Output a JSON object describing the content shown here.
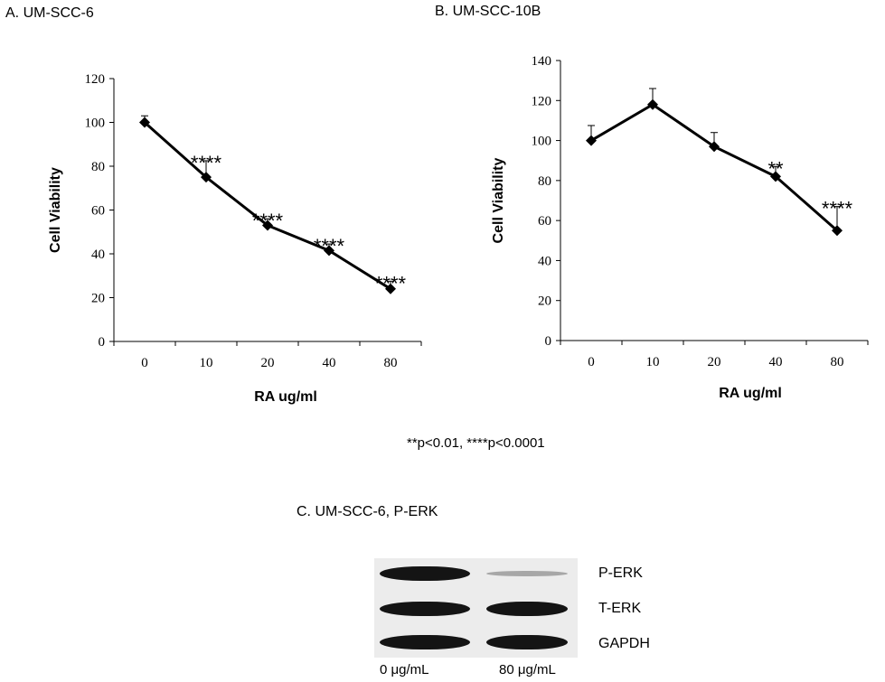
{
  "panels": {
    "a_title": "A.  UM-SCC-6",
    "b_title": "B. UM-SCC-10B",
    "c_title": "C.  UM-SCC-6, P-ERK"
  },
  "pvalue_note": "**p<0.01, ****p<0.0001",
  "chart_data": [
    {
      "type": "line",
      "title": "A.  UM-SCC-6",
      "xlabel": "RA ug/ml",
      "ylabel": "Cell Viability",
      "categories": [
        "0",
        "10",
        "20",
        "40",
        "80"
      ],
      "values": [
        100,
        75,
        53,
        41.5,
        24
      ],
      "errors": [
        3,
        7.5,
        3,
        3,
        3.5
      ],
      "significance": [
        "",
        "****",
        "****",
        "****",
        "****"
      ],
      "ylim": [
        0,
        120
      ],
      "yticks": [
        0,
        20,
        40,
        60,
        80,
        100,
        120
      ],
      "grid": false,
      "marker": "diamond"
    },
    {
      "type": "line",
      "title": "B. UM-SCC-10B",
      "xlabel": "RA ug/ml",
      "ylabel": "Cell Viability",
      "categories": [
        "0",
        "10",
        "20",
        "40",
        "80"
      ],
      "values": [
        100,
        118,
        97,
        82,
        55
      ],
      "errors": [
        7.5,
        8,
        7,
        5,
        12
      ],
      "significance": [
        "",
        "",
        "",
        "**",
        "****"
      ],
      "ylim": [
        0,
        140
      ],
      "yticks": [
        0,
        20,
        40,
        60,
        80,
        100,
        120,
        140
      ],
      "grid": false,
      "marker": "diamond"
    }
  ],
  "western_blot": {
    "rows": [
      {
        "label": "P-ERK",
        "band_intensity": [
          1.0,
          0.3
        ]
      },
      {
        "label": "T-ERK",
        "band_intensity": [
          1.0,
          1.0
        ]
      },
      {
        "label": "GAPDH",
        "band_intensity": [
          1.0,
          1.0
        ]
      }
    ],
    "lanes": [
      "0 μg/mL",
      "80 μg/mL"
    ]
  }
}
